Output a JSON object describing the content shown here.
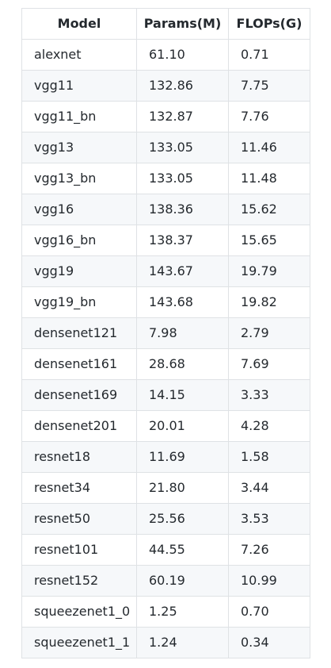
{
  "table": {
    "headers": [
      "Model",
      "Params(M)",
      "FLOPs(G)"
    ],
    "rows": [
      [
        "alexnet",
        "61.10",
        "0.71"
      ],
      [
        "vgg11",
        "132.86",
        "7.75"
      ],
      [
        "vgg11_bn",
        "132.87",
        "7.76"
      ],
      [
        "vgg13",
        "133.05",
        "11.46"
      ],
      [
        "vgg13_bn",
        "133.05",
        "11.48"
      ],
      [
        "vgg16",
        "138.36",
        "15.62"
      ],
      [
        "vgg16_bn",
        "138.37",
        "15.65"
      ],
      [
        "vgg19",
        "143.67",
        "19.79"
      ],
      [
        "vgg19_bn",
        "143.68",
        "19.82"
      ],
      [
        "densenet121",
        "7.98",
        "2.79"
      ],
      [
        "densenet161",
        "28.68",
        "7.69"
      ],
      [
        "densenet169",
        "14.15",
        "3.33"
      ],
      [
        "densenet201",
        "20.01",
        "4.28"
      ],
      [
        "resnet18",
        "11.69",
        "1.58"
      ],
      [
        "resnet34",
        "21.80",
        "3.44"
      ],
      [
        "resnet50",
        "25.56",
        "3.53"
      ],
      [
        "resnet101",
        "44.55",
        "7.26"
      ],
      [
        "resnet152",
        "60.19",
        "10.99"
      ],
      [
        "squeezenet1_0",
        "1.25",
        "0.70"
      ],
      [
        "squeezenet1_1",
        "1.24",
        "0.34"
      ]
    ]
  },
  "colors": {
    "border": "#dfe2e5",
    "stripe": "#f6f8fa",
    "text": "#24292e"
  }
}
